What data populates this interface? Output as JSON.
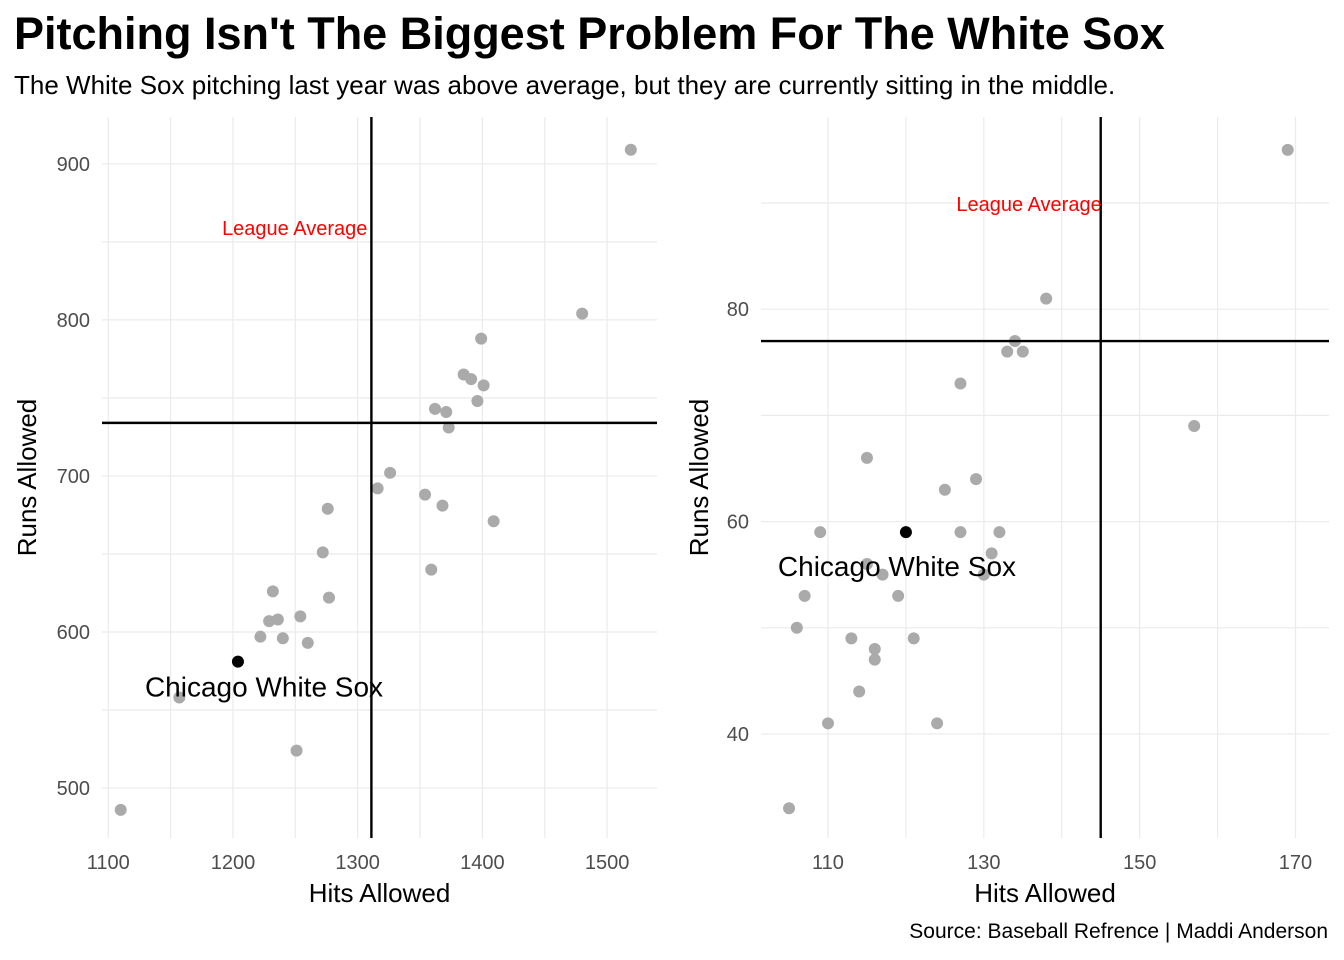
{
  "title": "Pitching Isn't The Biggest Problem For The White Sox",
  "subtitle": "The White Sox pitching last year was above average, but they are currently sitting in the middle.",
  "caption": "Source: Baseball Refrence | Maddi Anderson",
  "colors": {
    "points": "#aaaaaa",
    "highlight": "#000000",
    "average_label": "#ff0000",
    "average_lines": "#000000"
  },
  "chart_data": [
    {
      "type": "scatter",
      "xlabel": "Hits Allowed",
      "ylabel": "Runs Allowed",
      "xlim": [
        1095,
        1540
      ],
      "ylim": [
        468,
        930
      ],
      "x_ticks": [
        1100,
        1200,
        1300,
        1400,
        1500
      ],
      "y_ticks": [
        500,
        600,
        700,
        800,
        900
      ],
      "grid": true,
      "average": {
        "x": 1311,
        "y": 734,
        "label": "League Average"
      },
      "highlight": {
        "name": "Chicago White Sox",
        "x": 1204,
        "y": 581
      },
      "points": [
        {
          "x": 1110,
          "y": 486
        },
        {
          "x": 1157,
          "y": 558
        },
        {
          "x": 1222,
          "y": 597
        },
        {
          "x": 1229,
          "y": 607
        },
        {
          "x": 1232,
          "y": 626
        },
        {
          "x": 1236,
          "y": 608
        },
        {
          "x": 1240,
          "y": 596
        },
        {
          "x": 1251,
          "y": 524
        },
        {
          "x": 1254,
          "y": 610
        },
        {
          "x": 1260,
          "y": 593
        },
        {
          "x": 1272,
          "y": 651
        },
        {
          "x": 1276,
          "y": 679
        },
        {
          "x": 1277,
          "y": 622
        },
        {
          "x": 1316,
          "y": 692
        },
        {
          "x": 1326,
          "y": 702
        },
        {
          "x": 1354,
          "y": 688
        },
        {
          "x": 1359,
          "y": 640
        },
        {
          "x": 1362,
          "y": 743
        },
        {
          "x": 1368,
          "y": 681
        },
        {
          "x": 1371,
          "y": 741
        },
        {
          "x": 1373,
          "y": 731
        },
        {
          "x": 1385,
          "y": 765
        },
        {
          "x": 1391,
          "y": 762
        },
        {
          "x": 1396,
          "y": 748
        },
        {
          "x": 1399,
          "y": 788
        },
        {
          "x": 1401,
          "y": 758
        },
        {
          "x": 1409,
          "y": 671
        },
        {
          "x": 1480,
          "y": 804
        },
        {
          "x": 1519,
          "y": 909
        }
      ]
    },
    {
      "type": "scatter",
      "xlabel": "Hits Allowed",
      "ylabel": "Runs Allowed",
      "xlim": [
        101.4,
        174.3
      ],
      "ylim": [
        30.2,
        98.1
      ],
      "x_ticks": [
        110,
        130,
        150,
        170
      ],
      "y_ticks": [
        40,
        60,
        80
      ],
      "grid": true,
      "average": {
        "x": 145,
        "y": 77,
        "label": "League Average"
      },
      "highlight": {
        "name": "Chicago White Sox",
        "x": 120,
        "y": 59
      },
      "points": [
        {
          "x": 105,
          "y": 33
        },
        {
          "x": 106,
          "y": 50
        },
        {
          "x": 107,
          "y": 53
        },
        {
          "x": 109,
          "y": 59
        },
        {
          "x": 110,
          "y": 41
        },
        {
          "x": 113,
          "y": 49
        },
        {
          "x": 114,
          "y": 44
        },
        {
          "x": 115,
          "y": 66
        },
        {
          "x": 115,
          "y": 56
        },
        {
          "x": 116,
          "y": 48
        },
        {
          "x": 116,
          "y": 47
        },
        {
          "x": 117,
          "y": 55
        },
        {
          "x": 119,
          "y": 53
        },
        {
          "x": 121,
          "y": 49
        },
        {
          "x": 124,
          "y": 41
        },
        {
          "x": 125,
          "y": 63
        },
        {
          "x": 127,
          "y": 73
        },
        {
          "x": 127,
          "y": 59
        },
        {
          "x": 129,
          "y": 64
        },
        {
          "x": 130,
          "y": 55
        },
        {
          "x": 131,
          "y": 57
        },
        {
          "x": 132,
          "y": 59
        },
        {
          "x": 133,
          "y": 76
        },
        {
          "x": 134,
          "y": 77
        },
        {
          "x": 135,
          "y": 76
        },
        {
          "x": 138,
          "y": 81
        },
        {
          "x": 157,
          "y": 69
        },
        {
          "x": 169,
          "y": 95
        }
      ]
    }
  ]
}
